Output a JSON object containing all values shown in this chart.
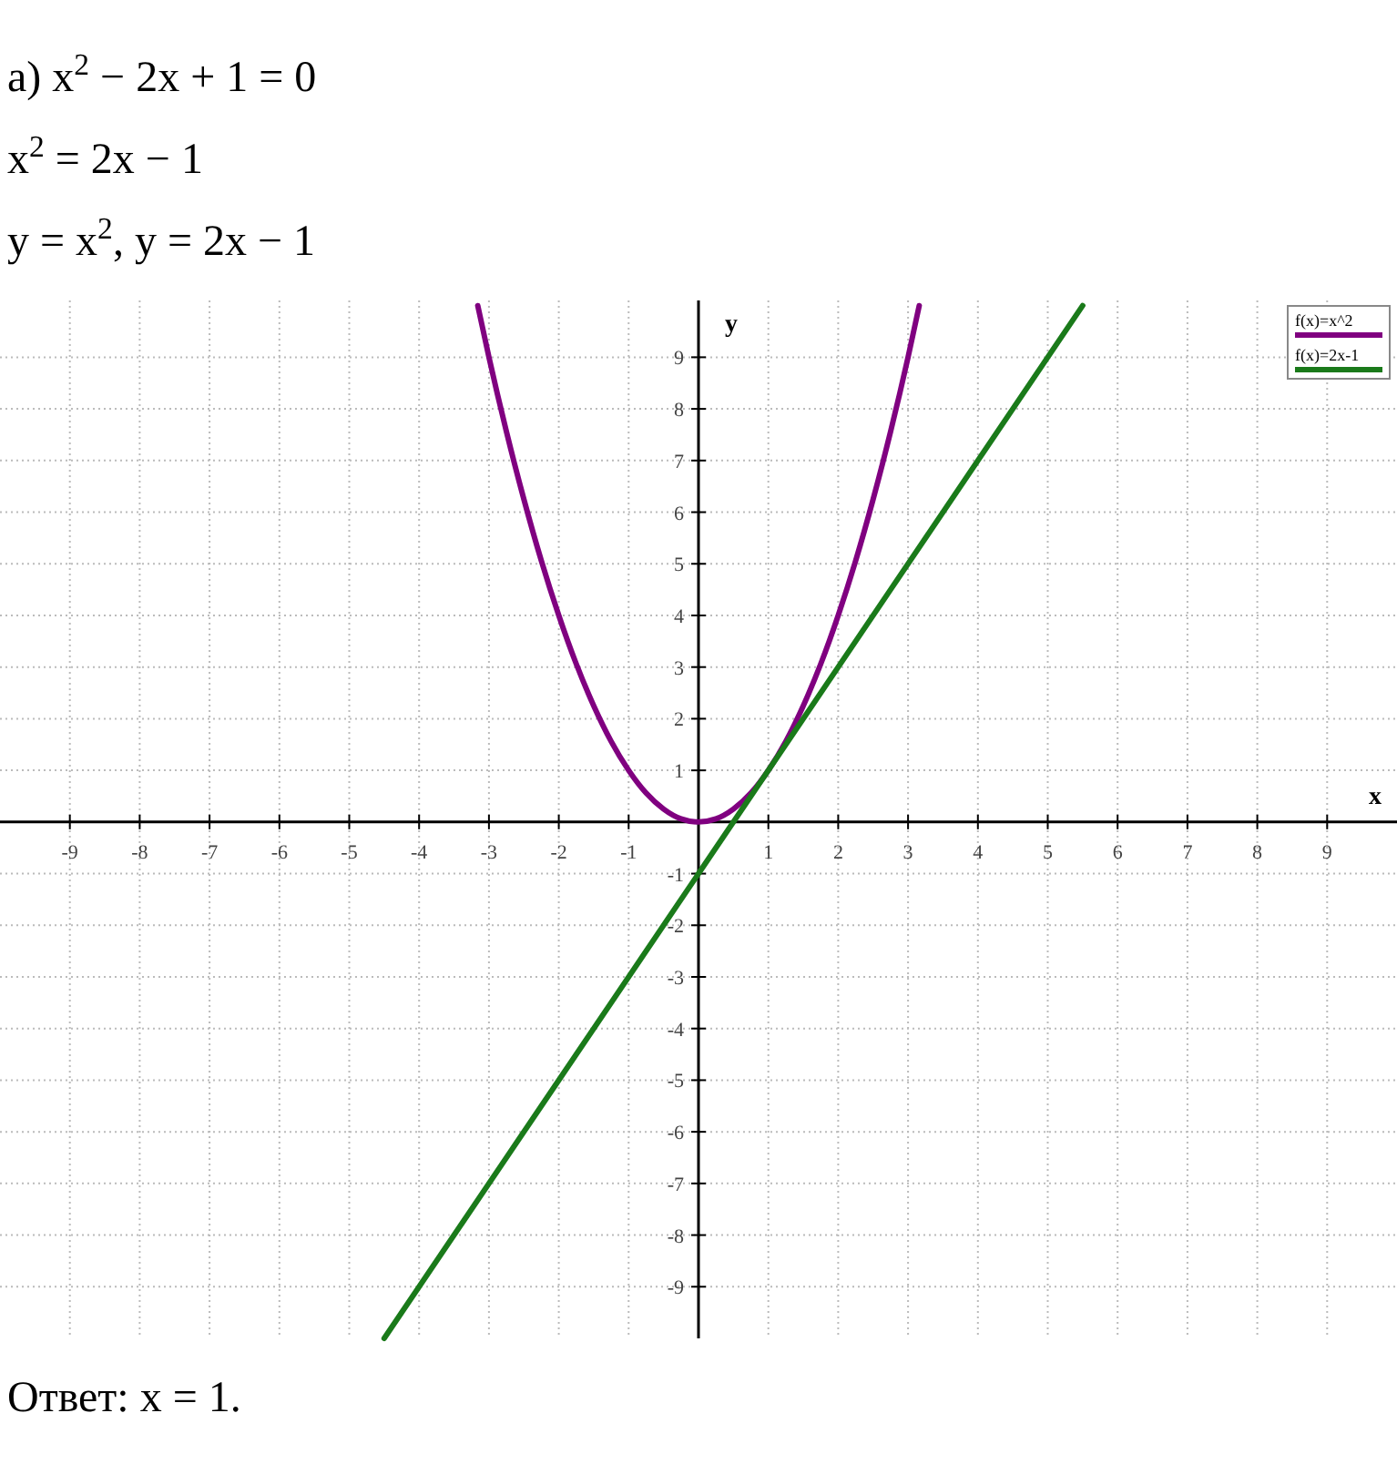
{
  "chart_data": {
    "type": "line",
    "xlabel": "x",
    "ylabel": "y",
    "xlim": [
      -10,
      10
    ],
    "ylim": [
      -10,
      10.1
    ],
    "xticks": [
      -9,
      -8,
      -7,
      -6,
      -5,
      -4,
      -3,
      -2,
      -1,
      1,
      2,
      3,
      4,
      5,
      6,
      7,
      8,
      9
    ],
    "yticks": [
      -9,
      -8,
      -7,
      -6,
      -5,
      -4,
      -3,
      -2,
      -1,
      1,
      2,
      3,
      4,
      5,
      6,
      7,
      8,
      9
    ],
    "grid": true,
    "legend": "top right",
    "line_style": "solid",
    "annotations": [
      "а) x$^{2}$ − 2x + 1 = 0",
      "x$^{2}$ = 2x − 1",
      "y = x$^{2}$,       y = 2x − 1",
      "Ответ: x = 1."
    ],
    "series": [
      {
        "name": "f(x)=x^2",
        "color": "#800080",
        "x": [
          -3.16,
          -3,
          -2.75,
          -2.5,
          -2.25,
          -2,
          -1.75,
          -1.5,
          -1.25,
          -1,
          -0.75,
          -0.5,
          -0.25,
          0,
          0.25,
          0.5,
          0.75,
          1,
          1.25,
          1.5,
          1.75,
          2,
          2.25,
          2.5,
          2.75,
          3,
          3.16
        ],
        "values": [
          10,
          9,
          7.56,
          6.25,
          5.06,
          4,
          3.06,
          2.25,
          1.56,
          1,
          0.56,
          0.25,
          0.06,
          0,
          0.06,
          0.25,
          0.56,
          1,
          1.56,
          2.25,
          3.06,
          4,
          5.06,
          6.25,
          7.56,
          9,
          10
        ]
      },
      {
        "name": "f(x)=2x-1",
        "color": "#1a7a1a",
        "x": [
          -4.5,
          0,
          5.5
        ],
        "values": [
          -10,
          -1,
          10
        ]
      }
    ]
  }
}
